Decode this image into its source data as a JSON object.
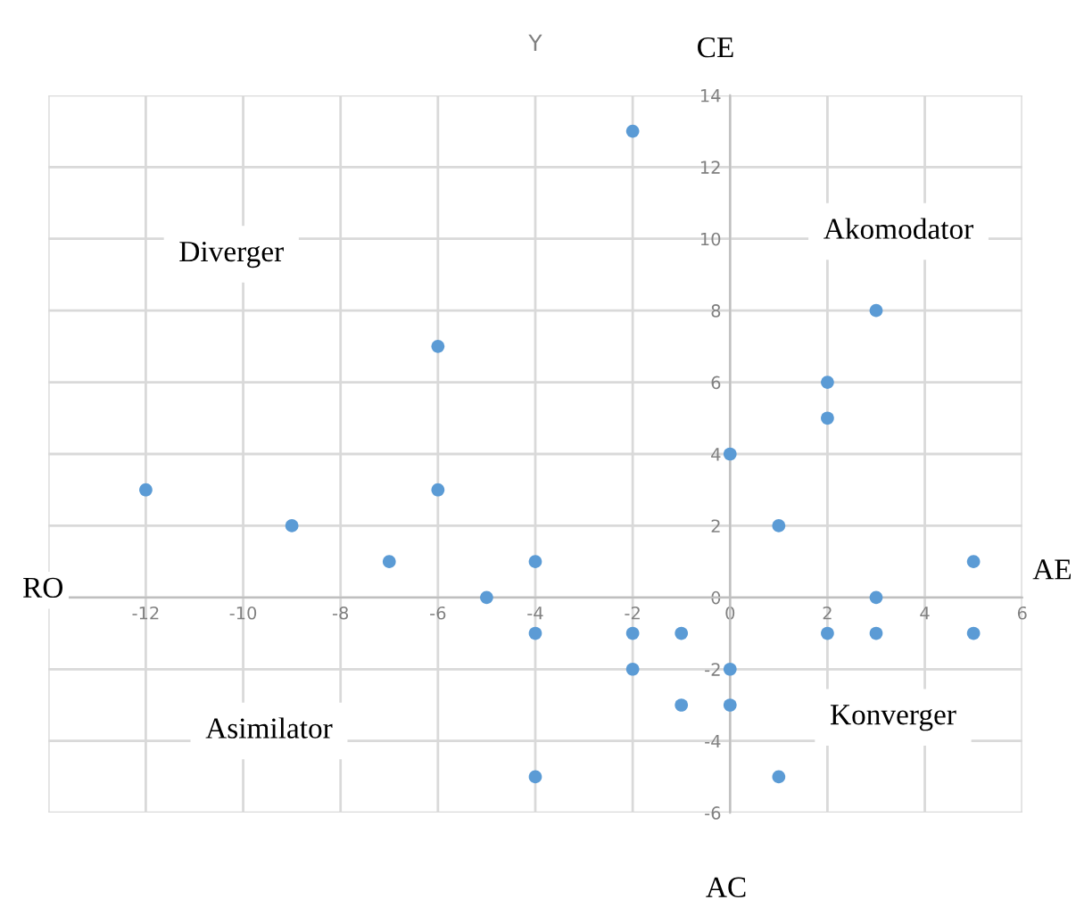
{
  "chart_data": {
    "type": "scatter",
    "title": "Y",
    "x": [
      -12,
      -9,
      -7,
      -6,
      -6,
      -5,
      -4,
      -4,
      -4,
      -2,
      -2,
      -2,
      -1,
      -1,
      0,
      0,
      0,
      1,
      1,
      2,
      2,
      2,
      3,
      3,
      3,
      5,
      5
    ],
    "series": [
      {
        "color": "#5b9bd5",
        "values": [
          3,
          2,
          1,
          7,
          3,
          0,
          1,
          -1,
          -5,
          13,
          -1,
          -2,
          -1,
          -3,
          4,
          -2,
          -3,
          2,
          -5,
          6,
          5,
          -1,
          8,
          0,
          -1,
          1,
          -1
        ]
      }
    ],
    "xlim": [
      -14,
      6
    ],
    "xticks": [
      {
        "value": -14,
        "label": null
      },
      -12,
      -10,
      -8,
      -6,
      -4,
      -2,
      0,
      2,
      4,
      6
    ],
    "ylim": [
      -6,
      14
    ],
    "yticks": [
      -6,
      -4,
      -2,
      0,
      2,
      4,
      6,
      8,
      10,
      12,
      14
    ],
    "grid": true,
    "marker": "circle",
    "annotations": [
      "CE",
      "AC",
      "RO",
      "AE",
      "Diverger",
      "Akomodator",
      "Asimilator",
      "Konverger"
    ]
  }
}
